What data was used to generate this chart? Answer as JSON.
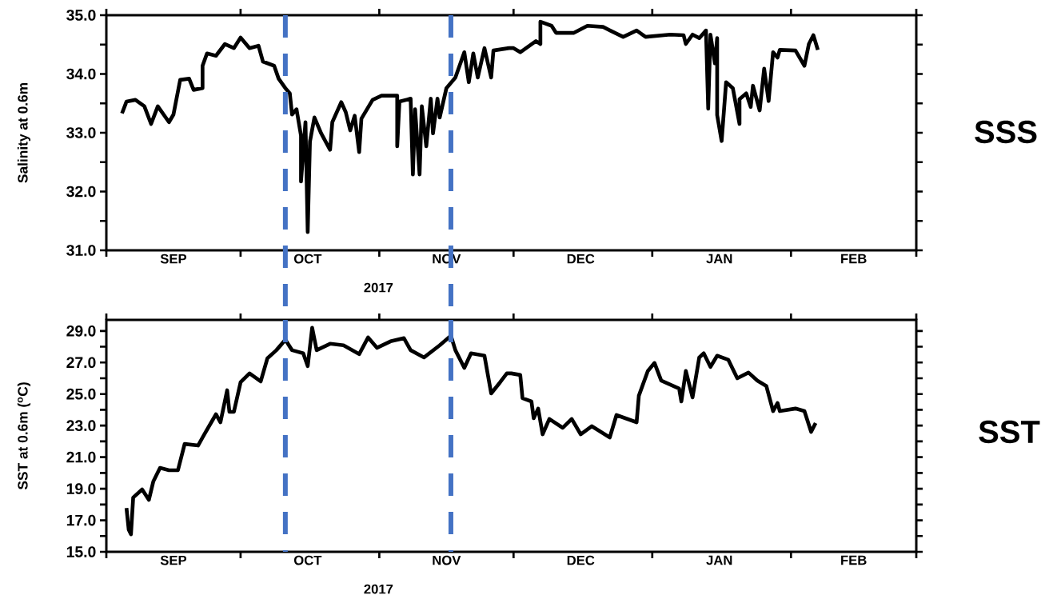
{
  "chart_data": [
    {
      "type": "line",
      "ylabel": "Salinity at 0.6m",
      "xlabel": "2017",
      "annotations": [
        "SSS"
      ],
      "xlim": [
        "2017-09-01",
        "2018-03-01"
      ],
      "xticks": [
        {
          "value": "2017-09-01",
          "label": null
        },
        {
          "value": "2017-10-01",
          "label": null
        },
        {
          "value": "2017-11-01",
          "label": null
        },
        {
          "value": "2017-12-01",
          "label": null
        },
        {
          "value": "2018-01-01",
          "label": null
        },
        {
          "value": "2018-02-01",
          "label": null
        },
        {
          "value": "2018-03-01",
          "label": null
        },
        {
          "value": "2017-09-16",
          "label": "SEP"
        },
        {
          "value": "2017-10-16",
          "label": "OCT"
        },
        {
          "value": "2017-11-16",
          "label": "NOV"
        },
        {
          "value": "2017-12-16",
          "label": "DEC"
        },
        {
          "value": "2018-01-16",
          "label": "JAN"
        },
        {
          "value": "2018-02-15",
          "label": "FEB"
        }
      ],
      "ylim": [
        31,
        35
      ],
      "yticks": [
        {
          "value": 31,
          "label": "31.0"
        },
        {
          "value": 31.5,
          "label": null
        },
        {
          "value": 32,
          "label": "32.0"
        },
        {
          "value": 32.5,
          "label": null
        },
        {
          "value": 33,
          "label": "33.0"
        },
        {
          "value": 33.5,
          "label": null
        },
        {
          "value": 34,
          "label": "34.0"
        },
        {
          "value": 34.5,
          "label": null
        },
        {
          "value": 35,
          "label": "35.0"
        }
      ],
      "ref_lines": [
        {
          "axis": "x",
          "value": "2017-10-11",
          "color": "#4472c4",
          "line_style": "dashed"
        },
        {
          "axis": "x",
          "value": "2017-11-17",
          "color": "#4472c4",
          "line_style": "dashed"
        }
      ],
      "series": [
        {
          "color": "#000000",
          "x": [
            "2017-09-04T12:00",
            "2017-09-05T12:00",
            "2017-09-07T12:00",
            "2017-09-09T12:00",
            "2017-09-11",
            "2017-09-12T12:00",
            "2017-09-15",
            "2017-09-16",
            "2017-09-17T12:00",
            "2017-09-19T12:00",
            "2017-09-20T12:00",
            "2017-09-22T12:00",
            "2017-09-22T12:00",
            "2017-09-23T12:00",
            "2017-09-25T12:00",
            "2017-09-27T12:00",
            "2017-09-29T12:00",
            "2017-10-01",
            "2017-10-03",
            "2017-10-05",
            "2017-10-06",
            "2017-10-08T12:00",
            "2017-10-09T12:00",
            "2017-10-11",
            "2017-10-12",
            "2017-10-12T12:00",
            "2017-10-13T12:00",
            "2017-10-14T12:00",
            "2017-10-14T12:00",
            "2017-10-15T12:00",
            "2017-10-16",
            "2017-10-16T12:00",
            "2017-10-17T12:00",
            "2017-10-19",
            "2017-10-21",
            "2017-10-21T12:00",
            "2017-10-23T12:00",
            "2017-10-24T12:00",
            "2017-10-25T12:00",
            "2017-10-26T12:00",
            "2017-10-27T12:00",
            "2017-10-28",
            "2017-10-30T12:00",
            "2017-11-01T12:00",
            "2017-11-05",
            "2017-11-05",
            "2017-11-05T12:00",
            "2017-11-08",
            "2017-11-08T12:00",
            "2017-11-09",
            "2017-11-10",
            "2017-11-10T12:00",
            "2017-11-11T12:00",
            "2017-11-12T12:00",
            "2017-11-13",
            "2017-11-14",
            "2017-11-14T12:00",
            "2017-11-16",
            "2017-11-18",
            "2017-11-20",
            "2017-11-21",
            "2017-11-22",
            "2017-11-23",
            "2017-11-24T12:00",
            "2017-11-26",
            "2017-11-26T12:00",
            "2017-11-30",
            "2017-12-01",
            "2017-12-02T12:00",
            "2017-12-06",
            "2017-12-07",
            "2017-12-07",
            "2017-12-09T12:00",
            "2017-12-10T12:00",
            "2017-12-14T12:00",
            "2017-12-17T12:00",
            "2017-12-21",
            "2017-12-25T12:00",
            "2017-12-28T12:00",
            "2017-12-30T12:00",
            "2018-01-05",
            "2018-01-08",
            "2018-01-08T12:00",
            "2018-01-10",
            "2018-01-11T12:00",
            "2018-01-13",
            "2018-01-13T12:00",
            "2018-01-14",
            "2018-01-15",
            "2018-01-15T12:00",
            "2018-01-15T12:00",
            "2018-01-16T12:00",
            "2018-01-17T12:00",
            "2018-01-19",
            "2018-01-20T12:00",
            "2018-01-20T12:00",
            "2018-01-22",
            "2018-01-23",
            "2018-01-23T12:00",
            "2018-01-25",
            "2018-01-26",
            "2018-01-27",
            "2018-01-28",
            "2018-01-29",
            "2018-01-29T12:00",
            "2018-02-02",
            "2018-02-04",
            "2018-02-05",
            "2018-02-06",
            "2018-02-07"
          ],
          "values": [
            33.33,
            33.53,
            33.56,
            33.45,
            33.15,
            33.45,
            33.18,
            33.31,
            33.9,
            33.92,
            33.73,
            33.76,
            34.14,
            34.35,
            34.31,
            34.51,
            34.44,
            34.62,
            34.44,
            34.48,
            34.21,
            34.14,
            33.92,
            33.76,
            33.67,
            33.31,
            33.4,
            32.95,
            32.17,
            33.18,
            31.31,
            32.85,
            33.26,
            32.99,
            32.71,
            33.18,
            33.52,
            33.35,
            33.04,
            33.29,
            32.67,
            33.24,
            33.56,
            33.63,
            33.63,
            32.77,
            33.53,
            33.58,
            32.29,
            33.4,
            32.29,
            33.45,
            32.77,
            33.58,
            32.99,
            33.58,
            33.26,
            33.76,
            33.94,
            34.37,
            33.86,
            34.35,
            33.94,
            34.44,
            33.94,
            34.4,
            34.44,
            34.44,
            34.37,
            34.56,
            34.51,
            34.89,
            34.82,
            34.7,
            34.7,
            34.82,
            34.8,
            34.63,
            34.74,
            34.63,
            34.67,
            34.66,
            34.51,
            34.67,
            34.61,
            34.74,
            33.41,
            34.67,
            34.18,
            34.61,
            33.3,
            32.86,
            33.86,
            33.76,
            33.15,
            33.57,
            33.67,
            33.44,
            33.8,
            33.38,
            34.09,
            33.54,
            34.37,
            34.28,
            34.41,
            34.4,
            34.14,
            34.51,
            34.66,
            34.41
          ]
        }
      ]
    },
    {
      "type": "line",
      "ylabel": "SST at 0.6m ($^{o}$C)",
      "xlabel": "2017",
      "annotations": [
        "SST"
      ],
      "xlim": [
        "2017-09-01",
        "2018-03-01"
      ],
      "xticks": [
        {
          "value": "2017-09-01",
          "label": null
        },
        {
          "value": "2017-10-01",
          "label": null
        },
        {
          "value": "2017-11-01",
          "label": null
        },
        {
          "value": "2017-12-01",
          "label": null
        },
        {
          "value": "2018-01-01",
          "label": null
        },
        {
          "value": "2018-02-01",
          "label": null
        },
        {
          "value": "2018-03-01",
          "label": null
        },
        {
          "value": "2017-09-16",
          "label": "SEP"
        },
        {
          "value": "2017-10-16",
          "label": "OCT"
        },
        {
          "value": "2017-11-16",
          "label": "NOV"
        },
        {
          "value": "2017-12-16",
          "label": "DEC"
        },
        {
          "value": "2018-01-16",
          "label": "JAN"
        },
        {
          "value": "2018-02-15",
          "label": "FEB"
        }
      ],
      "ylim": [
        15,
        29.7
      ],
      "yticks": [
        {
          "value": 15,
          "label": "15.0"
        },
        {
          "value": 16,
          "label": null
        },
        {
          "value": 17,
          "label": "17.0"
        },
        {
          "value": 18,
          "label": null
        },
        {
          "value": 19,
          "label": "19.0"
        },
        {
          "value": 20,
          "label": null
        },
        {
          "value": 21,
          "label": "21.0"
        },
        {
          "value": 22,
          "label": null
        },
        {
          "value": 23,
          "label": "23.0"
        },
        {
          "value": 24,
          "label": null
        },
        {
          "value": 25,
          "label": "25.0"
        },
        {
          "value": 26,
          "label": null
        },
        {
          "value": 27,
          "label": "27.0"
        },
        {
          "value": 28,
          "label": null
        },
        {
          "value": 29,
          "label": "29.0"
        }
      ],
      "ref_lines": [
        {
          "axis": "x",
          "value": "2017-10-11",
          "color": "#4472c4",
          "line_style": "dashed"
        },
        {
          "axis": "x",
          "value": "2017-11-17",
          "color": "#4472c4",
          "line_style": "dashed"
        }
      ],
      "series": [
        {
          "color": "#000000",
          "x": [
            "2017-09-05T12:00",
            "2017-09-06",
            "2017-09-06T12:00",
            "2017-09-07",
            "2017-09-09",
            "2017-09-10T12:00",
            "2017-09-11T12:00",
            "2017-09-13",
            "2017-09-15",
            "2017-09-17",
            "2017-09-18T12:00",
            "2017-09-21T12:00",
            "2017-09-23",
            "2017-09-25T12:00",
            "2017-09-26T12:00",
            "2017-09-28",
            "2017-09-28T12:00",
            "2017-09-29T12:00",
            "2017-10-01",
            "2017-10-03",
            "2017-10-05T12:00",
            "2017-10-07",
            "2017-10-09",
            "2017-10-11",
            "2017-10-12T12:00",
            "2017-10-15",
            "2017-10-16",
            "2017-10-17",
            "2017-10-18",
            "2017-10-21",
            "2017-10-24",
            "2017-10-27T12:00",
            "2017-10-29T12:00",
            "2017-10-31T12:00",
            "2017-11-03T12:00",
            "2017-11-06T12:00",
            "2017-11-08",
            "2017-11-11",
            "2017-11-14T12:00",
            "2017-11-17",
            "2017-11-18",
            "2017-11-20",
            "2017-11-21T12:00",
            "2017-11-24T12:00",
            "2017-11-26",
            "2017-11-28",
            "2017-11-29T12:00",
            "2017-11-30T12:00",
            "2017-12-02T12:00",
            "2017-12-03",
            "2017-12-05",
            "2017-12-05T12:00",
            "2017-12-06T12:00",
            "2017-12-07T12:00",
            "2017-12-09",
            "2017-12-12",
            "2017-12-14",
            "2017-12-16",
            "2017-12-18T12:00",
            "2017-12-22T12:00",
            "2017-12-24",
            "2017-12-28T12:00",
            "2017-12-29",
            "2017-12-31",
            "2018-01-01T12:00",
            "2018-01-03",
            "2018-01-07",
            "2018-01-07T12:00",
            "2018-01-08T12:00",
            "2018-01-10",
            "2018-01-11T12:00",
            "2018-01-12T12:00",
            "2018-01-14",
            "2018-01-15T12:00",
            "2018-01-18",
            "2018-01-20",
            "2018-01-22T12:00",
            "2018-01-24T12:00",
            "2018-01-26T12:00",
            "2018-01-28",
            "2018-01-29",
            "2018-01-29T12:00",
            "2018-02-02",
            "2018-02-04",
            "2018-02-05T12:00",
            "2018-02-06T12:00"
          ],
          "values": [
            17.78,
            16.41,
            16.11,
            18.44,
            18.95,
            18.29,
            19.46,
            20.32,
            20.17,
            20.17,
            21.84,
            21.74,
            22.5,
            23.72,
            23.21,
            25.24,
            23.87,
            23.87,
            25.75,
            26.31,
            25.8,
            27.27,
            27.78,
            28.44,
            27.78,
            27.58,
            26.77,
            29.2,
            27.78,
            28.19,
            28.09,
            27.53,
            28.59,
            27.93,
            28.34,
            28.54,
            27.78,
            27.32,
            28.09,
            28.7,
            27.78,
            26.66,
            27.58,
            27.43,
            25.04,
            25.75,
            26.31,
            26.31,
            26.21,
            24.74,
            24.53,
            23.47,
            24.08,
            22.45,
            23.42,
            22.86,
            23.42,
            22.45,
            22.96,
            22.25,
            23.67,
            23.21,
            24.89,
            26.46,
            26.97,
            25.85,
            25.35,
            24.53,
            26.46,
            24.79,
            27.32,
            27.58,
            26.72,
            27.43,
            27.17,
            26.0,
            26.36,
            25.85,
            25.5,
            23.92,
            24.43,
            23.92,
            24.08,
            23.92,
            22.6,
            23.16
          ]
        }
      ]
    }
  ]
}
